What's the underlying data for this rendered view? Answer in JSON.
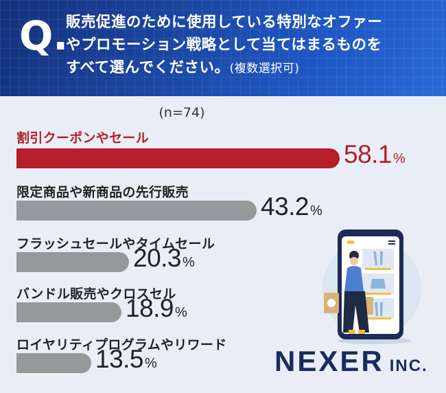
{
  "question": {
    "mark": "Q.",
    "lines": [
      "販売促進のために使用している特別なオファー",
      "やプロモーション戦略として当てはまるものを",
      "すべて選んでください。"
    ],
    "note": "(複数選択可)"
  },
  "sample_size": "(n=74)",
  "colors": {
    "highlight": "#b51e2a",
    "bar": "#97989b",
    "header": "#1c4aa8"
  },
  "chart_data": {
    "type": "bar",
    "orientation": "horizontal",
    "unit": "%",
    "categories": [
      "割引クーポンやセール",
      "限定商品や新商品の先行販売",
      "フラッシュセールやタイムセール",
      "バンドル販売やクロスセル",
      "ロイヤリティプログラムやリワード"
    ],
    "values": [
      58.1,
      43.2,
      20.3,
      18.9,
      13.5
    ],
    "value_labels": [
      "58.1",
      "43.2",
      "20.3",
      "18.9",
      "13.5"
    ],
    "highlight_index": 0
  },
  "logo": {
    "name": "NEXER",
    "suffix": "INC."
  }
}
